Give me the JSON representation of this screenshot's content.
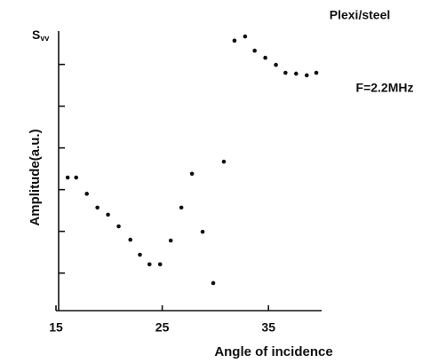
{
  "chart_data": {
    "type": "scatter",
    "title": "Plexi/steel",
    "y_symbol": "S",
    "y_symbol_subscript": "vv",
    "annotation": "F=2.2MHz",
    "xlabel": "Angle of incidence",
    "ylabel": "Amplitude(a.u.)",
    "color": "#111111",
    "x": [
      16.1,
      16.9,
      17.9,
      18.9,
      19.9,
      20.9,
      22.0,
      22.9,
      23.8,
      24.8,
      25.8,
      26.8,
      27.8,
      28.8,
      29.8,
      30.8,
      31.8,
      32.8,
      33.7,
      34.7,
      35.7,
      36.6,
      37.6,
      38.6,
      39.5
    ],
    "values": [
      3.29,
      3.29,
      2.9,
      2.57,
      2.4,
      2.12,
      1.8,
      1.44,
      1.21,
      1.21,
      1.78,
      2.57,
      3.38,
      1.99,
      0.76,
      3.67,
      6.57,
      6.67,
      6.33,
      6.16,
      5.99,
      5.8,
      5.78,
      5.74,
      5.8
    ],
    "xlim": [
      15,
      40
    ],
    "xticks": [
      15,
      25,
      35
    ],
    "ylim": [
      0.1,
      6.8
    ],
    "yticks": [
      1,
      2,
      3,
      4,
      5,
      6
    ]
  }
}
